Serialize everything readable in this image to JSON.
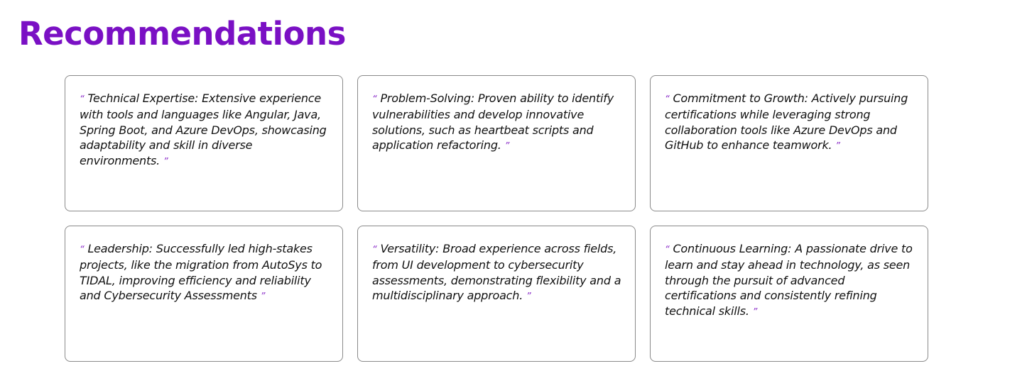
{
  "page": {
    "title": "Recommendations",
    "accent_color": "#7a10c4",
    "quote_mark_color": "#8a2cc8"
  },
  "quote_marks": {
    "open": "“",
    "close": "”"
  },
  "recommendations": [
    {
      "text": "Technical Expertise: Extensive experience with tools and languages like Angular, Java, Spring Boot, and Azure DevOps, showcasing adaptability and skill in diverse environments."
    },
    {
      "text": "Problem-Solving: Proven ability to identify vulnerabilities and develop innovative solutions, such as heartbeat scripts and application refactoring."
    },
    {
      "text": "Commitment to Growth: Actively pursuing certifications while leveraging strong collaboration tools like Azure DevOps and GitHub to enhance teamwork."
    },
    {
      "text": "Leadership: Successfully led high-stakes projects, like the migration from AutoSys to TIDAL, improving efficiency and reliability and Cybersecurity Assessments"
    },
    {
      "text": "Versatility: Broad experience across fields, from UI development to cybersecurity assessments, demonstrating flexibility and a multidisciplinary approach."
    },
    {
      "text": "Continuous Learning: A passionate drive to learn and stay ahead in technology, as seen through the pursuit of advanced certifications and consistently refining technical skills."
    }
  ]
}
